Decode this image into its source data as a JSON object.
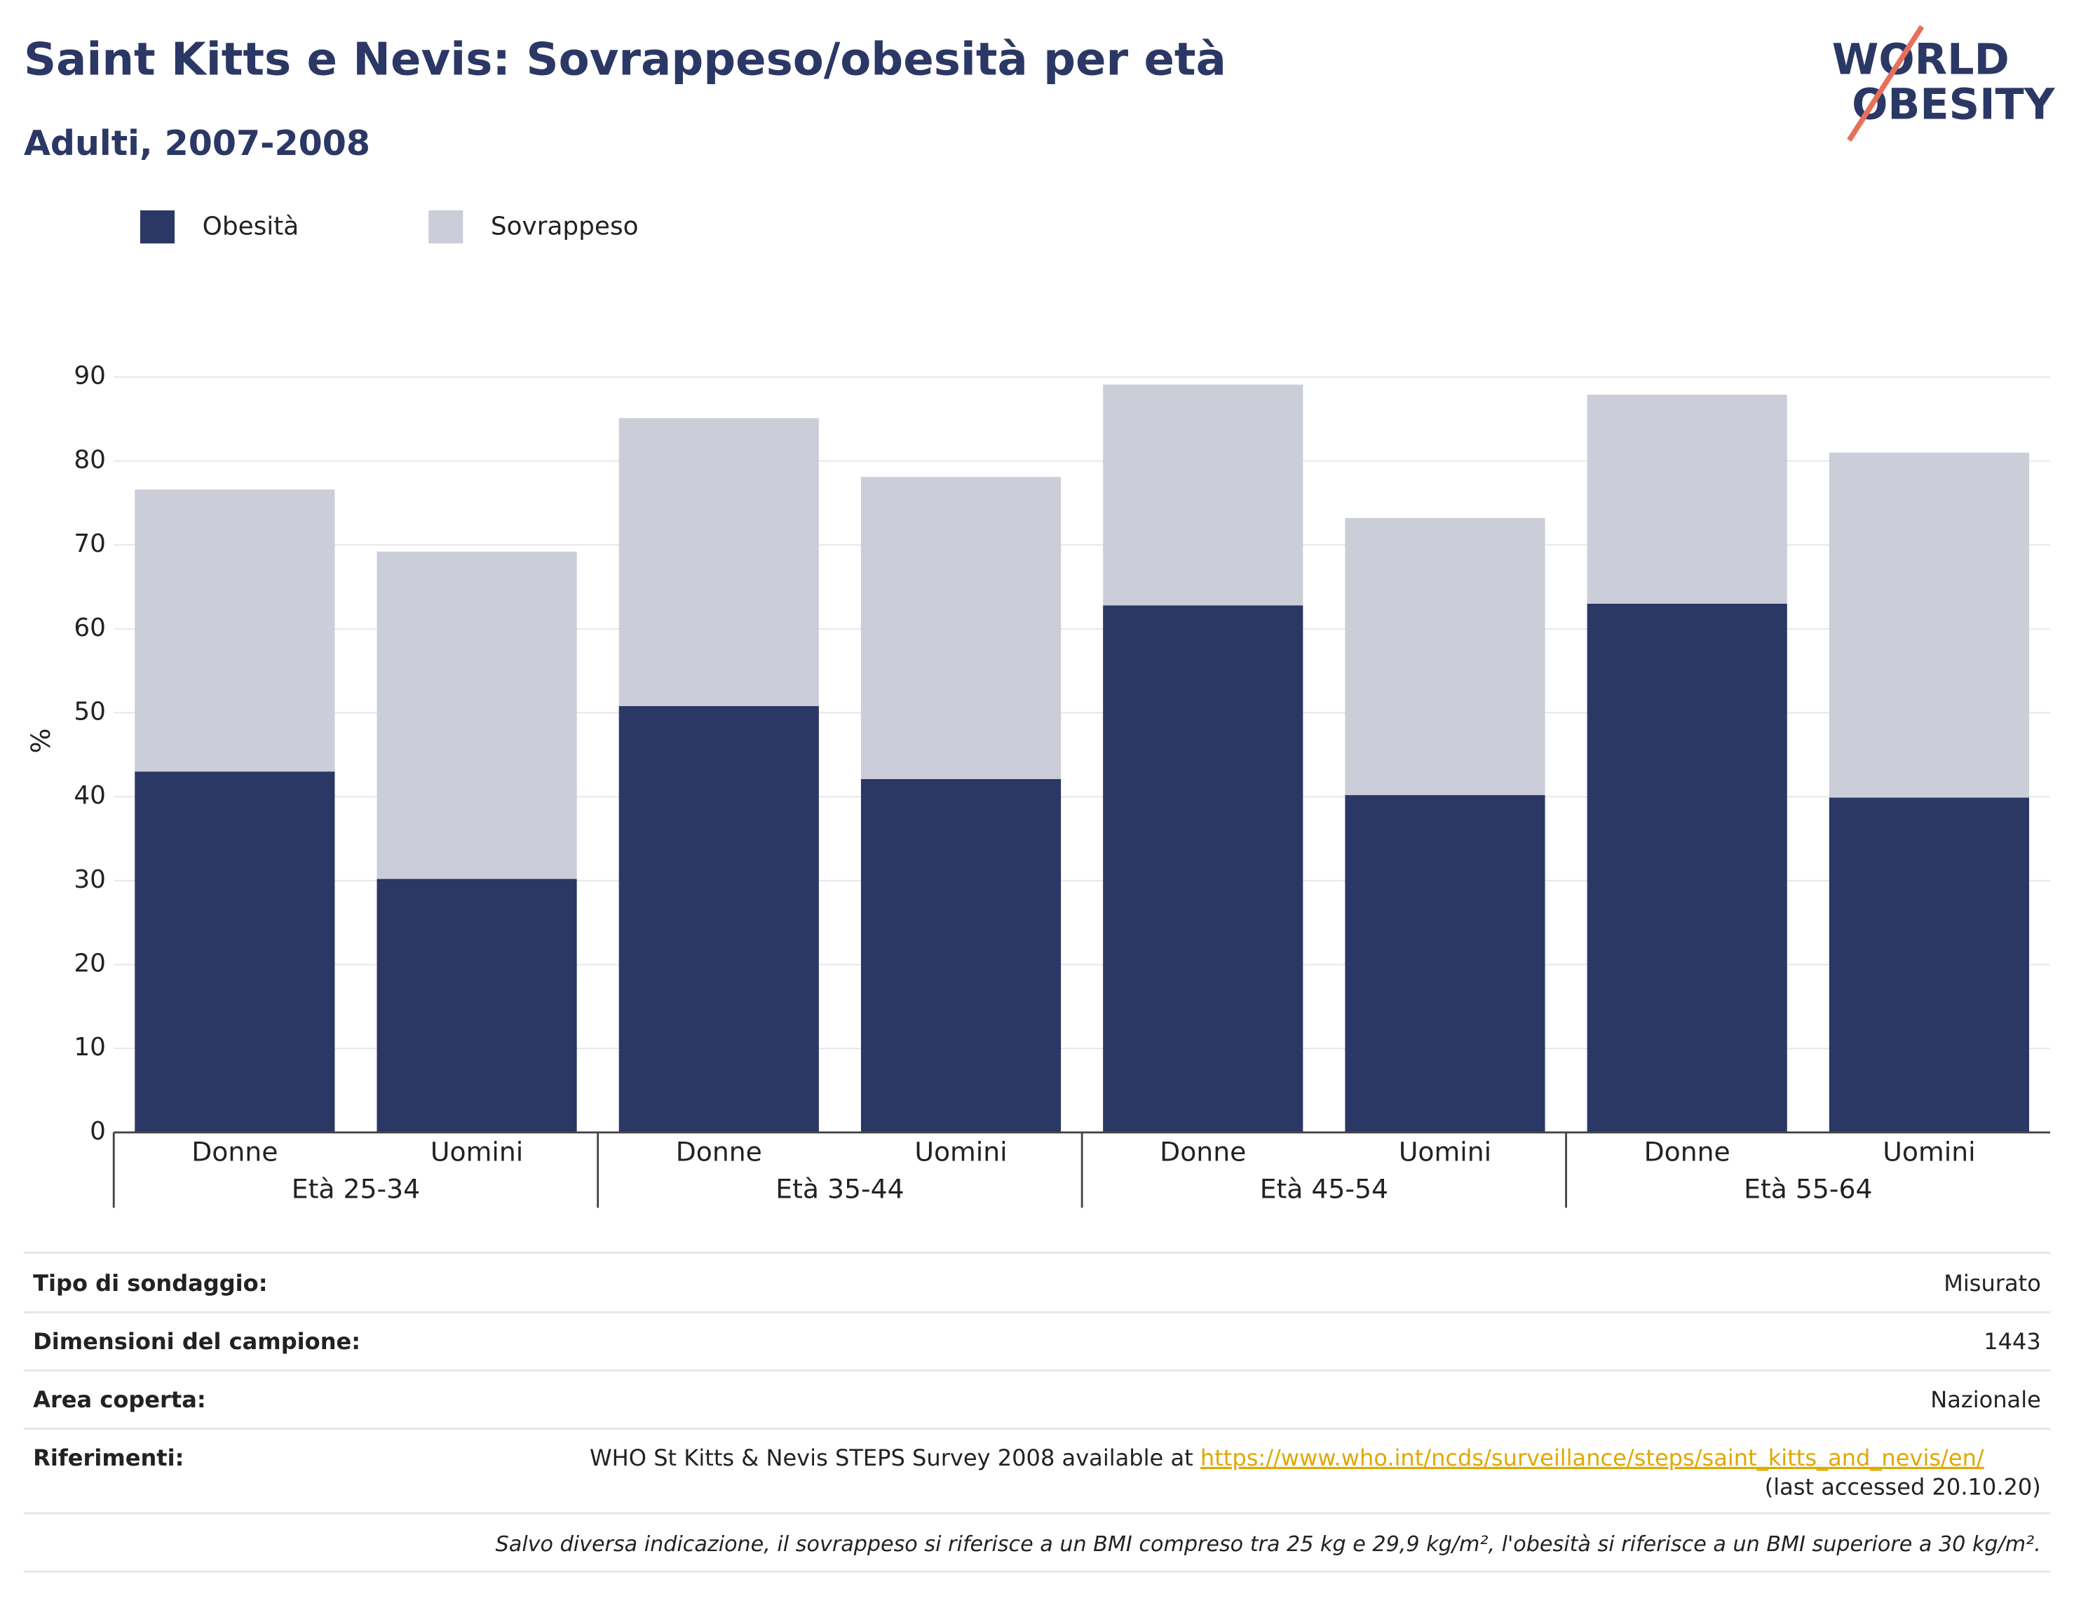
{
  "chart_data": {
    "type": "stacked_bar",
    "title": "Saint Kitts e Nevis: Sovrappeso/obesità per età",
    "subtitle": "Adulti, 2007-2008",
    "logo": [
      "WORLD",
      "OBESITY"
    ],
    "ylabel": "%",
    "categories": [
      "Donne",
      "Uomini",
      "Donne",
      "Uomini",
      "Donne",
      "Uomini",
      "Donne",
      "Uomini"
    ],
    "groups": [
      "Età 25-34",
      "Età 35-44",
      "Età 45-54",
      "Età 55-64"
    ],
    "series": [
      {
        "name": "Obesità",
        "color": "#2b3764",
        "values": [
          43,
          30.2,
          50.8,
          42.1,
          62.8,
          40.2,
          63,
          39.9
        ]
      },
      {
        "name": "Sovrappeso",
        "color": "#cbcdd8",
        "values": [
          33.6,
          39,
          34.3,
          36,
          26.3,
          33,
          24.9,
          41.1
        ]
      }
    ],
    "ylim": [
      0,
      90
    ],
    "yticks": [
      0,
      10,
      20,
      30,
      40,
      50,
      60,
      70,
      80,
      90
    ],
    "grid": true,
    "legend": "top-left"
  },
  "info": [
    {
      "label": "Tipo di sondaggio:",
      "value": "Misurato"
    },
    {
      "label": "Dimensioni del campione:",
      "value": "1443"
    },
    {
      "label": "Area coperta:",
      "value": "Nazionale"
    }
  ],
  "references": {
    "label": "Riferimenti:",
    "text": "WHO St Kitts & Nevis STEPS Survey 2008 available at ",
    "link": "https://www.who.int/ncds/surveillance/steps/saint_kitts_and_nevis/en/",
    "tail": "(last accessed 20.10.20)"
  },
  "footnote": "Salvo diversa indicazione, il sovrappeso si riferisce a un BMI compreso tra 25 kg e 29,9 kg/m², l'obesità si riferisce a un BMI superiore a 30 kg/m²."
}
